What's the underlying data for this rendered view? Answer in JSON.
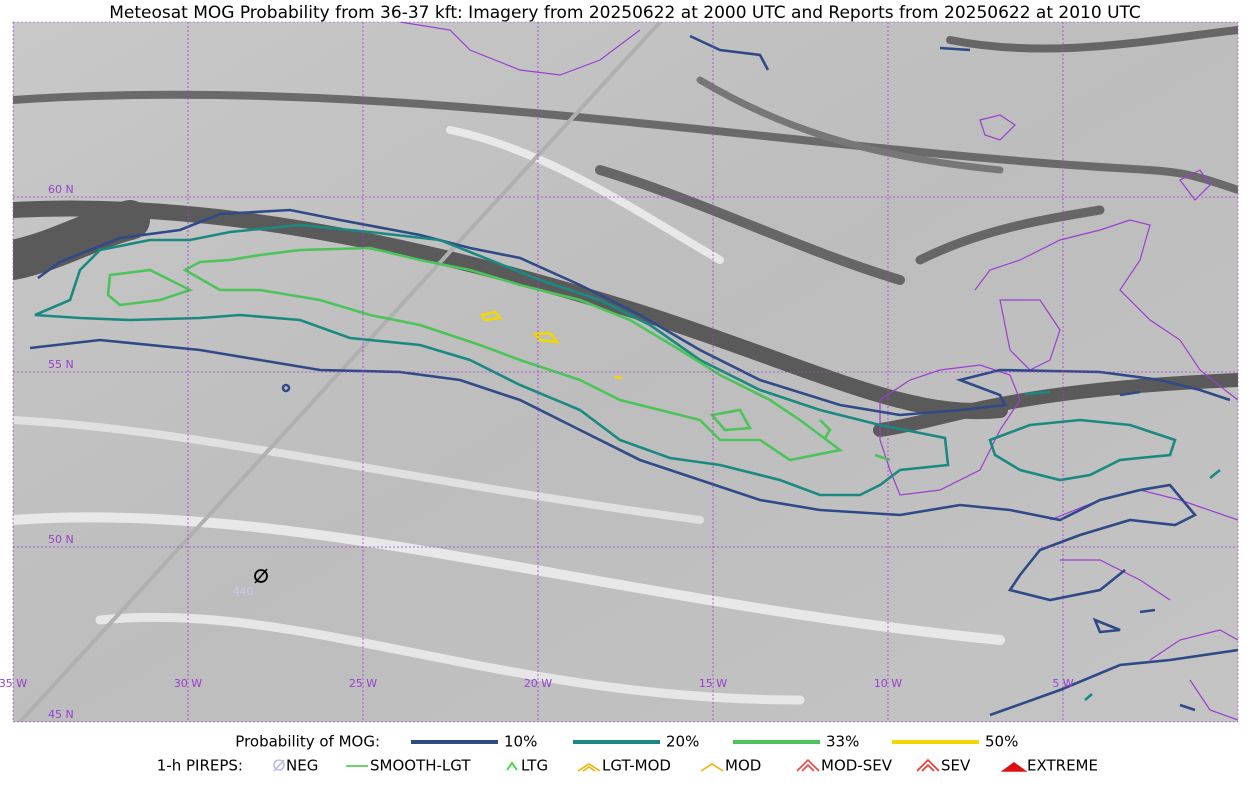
{
  "title": "Meteosat MOG Probability from 36-37 kft: Imagery from 20250622 at 2000 UTC and Reports from 20250622 at 2010 UTC",
  "map": {
    "lat_labels": [
      "60 N",
      "55 N",
      "50 N",
      "45 N"
    ],
    "lon_labels": [
      "35 W",
      "30 W",
      "25 W",
      "20 W",
      "15 W",
      "10 W",
      "5 W"
    ],
    "report_label": "440"
  },
  "legend": {
    "probability": {
      "label": "Probability of MOG:",
      "items": [
        {
          "label": "10%",
          "color": "#2f4a86"
        },
        {
          "label": "20%",
          "color": "#1a8a80"
        },
        {
          "label": "33%",
          "color": "#4cc45a"
        },
        {
          "label": "50%",
          "color": "#f2d800"
        }
      ]
    },
    "pireps": {
      "label": "1-h PIREPS:",
      "items": [
        {
          "label": "NEG",
          "color": "#b8b8f0"
        },
        {
          "label": "SMOOTH-LGT",
          "color": "#33cc33"
        },
        {
          "label": "LTG",
          "color": "#22dd22"
        },
        {
          "label": "LGT-MOD",
          "color": "#f0b000"
        },
        {
          "label": "MOD",
          "color": "#f0b000"
        },
        {
          "label": "MOD-SEV",
          "color": "#ee4444"
        },
        {
          "label": "SEV",
          "color": "#ee3333"
        },
        {
          "label": "EXTREME",
          "color": "#dd1111"
        }
      ]
    }
  }
}
